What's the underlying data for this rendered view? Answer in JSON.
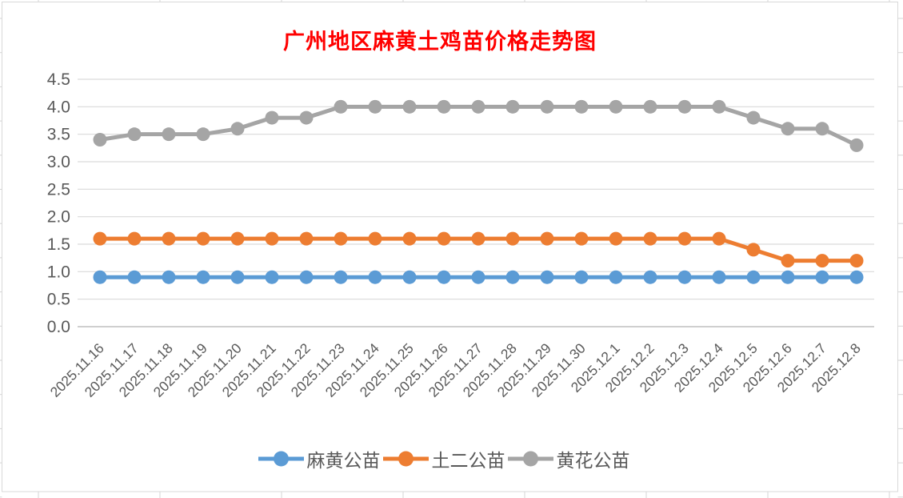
{
  "chart_data": {
    "type": "line",
    "title": "广州地区麻黄土鸡苗价格走势图",
    "title_color": "#FF0000",
    "categories": [
      "2025.11.16",
      "2025.11.17",
      "2025.11.18",
      "2025.11.19",
      "2025.11.20",
      "2025.11.21",
      "2025.11.22",
      "2025.11.23",
      "2025.11.24",
      "2025.11.25",
      "2025.11.26",
      "2025.11.27",
      "2025.11.28",
      "2025.11.29",
      "2025.11.30",
      "2025.12.1",
      "2025.12.2",
      "2025.12.3",
      "2025.12.4",
      "2025.12.5",
      "2025.12.6",
      "2025.12.7",
      "2025.12.8"
    ],
    "series": [
      {
        "name": "麻黄公苗",
        "color": "#5B9BD5",
        "values": [
          0.9,
          0.9,
          0.9,
          0.9,
          0.9,
          0.9,
          0.9,
          0.9,
          0.9,
          0.9,
          0.9,
          0.9,
          0.9,
          0.9,
          0.9,
          0.9,
          0.9,
          0.9,
          0.9,
          0.9,
          0.9,
          0.9,
          0.9
        ]
      },
      {
        "name": "土二公苗",
        "color": "#ED7D31",
        "values": [
          1.6,
          1.6,
          1.6,
          1.6,
          1.6,
          1.6,
          1.6,
          1.6,
          1.6,
          1.6,
          1.6,
          1.6,
          1.6,
          1.6,
          1.6,
          1.6,
          1.6,
          1.6,
          1.6,
          1.4,
          1.2,
          1.2,
          1.2
        ]
      },
      {
        "name": "黄花公苗",
        "color": "#A5A5A5",
        "values": [
          3.4,
          3.5,
          3.5,
          3.5,
          3.6,
          3.8,
          3.8,
          4.0,
          4.0,
          4.0,
          4.0,
          4.0,
          4.0,
          4.0,
          4.0,
          4.0,
          4.0,
          4.0,
          4.0,
          3.8,
          3.6,
          3.6,
          3.3
        ]
      }
    ],
    "ylim": [
      0,
      4.5
    ],
    "ytick_step": 0.5,
    "y_tick_labels": [
      "0.0",
      "0.5",
      "1.0",
      "1.5",
      "2.0",
      "2.5",
      "3.0",
      "3.5",
      "4.0",
      "4.5"
    ],
    "xlabel": "",
    "ylabel": "",
    "grid": true,
    "legend_position": "bottom",
    "axis_label_color": "#595959",
    "gridline_color": "#D9D9D9",
    "axis_line_color": "#BFBFBF"
  }
}
